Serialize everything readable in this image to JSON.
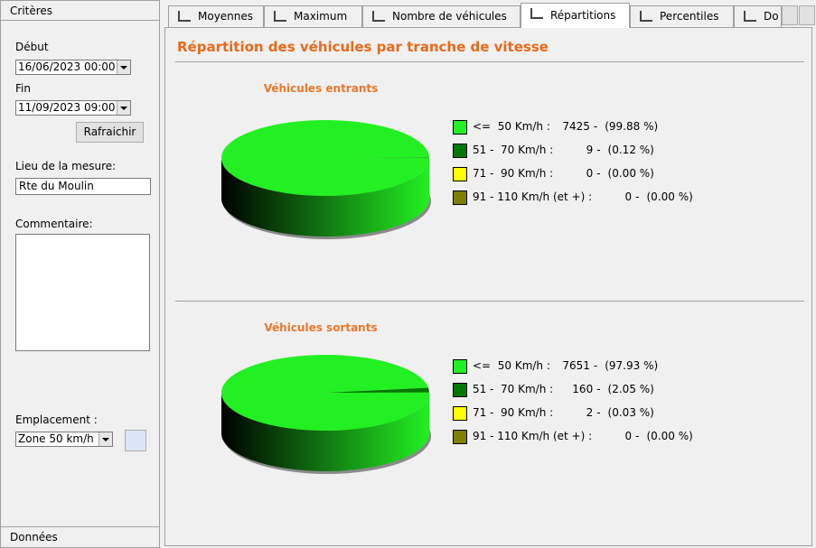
{
  "sidebar": {
    "header": "Critères",
    "start_label": "Début",
    "start_value": "16/06/2023 00:00",
    "end_label": "Fin",
    "end_value": "11/09/2023 09:00",
    "refresh_button": "Rafraichir",
    "location_label": "Lieu de la mesure:",
    "location_value": "Rte du Moulin",
    "comment_label": "Commentaire:",
    "placement_label": "Emplacement :",
    "placement_value": "Zone 50 km/h",
    "footer": "Données"
  },
  "tabs": [
    "Moyennes",
    "Maximum",
    "Nombre de véhicules",
    "Répartitions",
    "Percentiles",
    "Do"
  ],
  "page_title": "Répartition des véhicules par tranche de vitesse",
  "chart_data": [
    {
      "type": "pie",
      "title": "Véhicules entrants",
      "categories": [
        "<=  50 Km/h :",
        "51 -  70 Km/h :",
        "71 -  90 Km/h :",
        "91 - 110 Km/h (et +) :"
      ],
      "counts": [
        7425,
        9,
        0,
        0
      ],
      "separator": "-",
      "values": [
        99.88,
        0.12,
        0,
        0
      ],
      "value_labels": [
        "(99.88 %)",
        "(0.12 %)",
        "(0.00 %)",
        "(0.00 %)"
      ],
      "colors": [
        "#22f022",
        "#007800",
        "#ffff00",
        "#808000"
      ]
    },
    {
      "type": "pie",
      "title": "Véhicules sortants",
      "categories": [
        "<=  50 Km/h :",
        "51 -  70 Km/h :",
        "71 -  90 Km/h :",
        "91 - 110 Km/h (et +) :"
      ],
      "counts": [
        7651,
        160,
        2,
        0
      ],
      "separator": "-",
      "values": [
        97.93,
        2.05,
        0.03,
        0
      ],
      "value_labels": [
        "(97.93 %)",
        "(2.05 %)",
        "(0.03 %)",
        "(0.00 %)"
      ],
      "colors": [
        "#22f022",
        "#007800",
        "#ffff00",
        "#808000"
      ]
    }
  ]
}
